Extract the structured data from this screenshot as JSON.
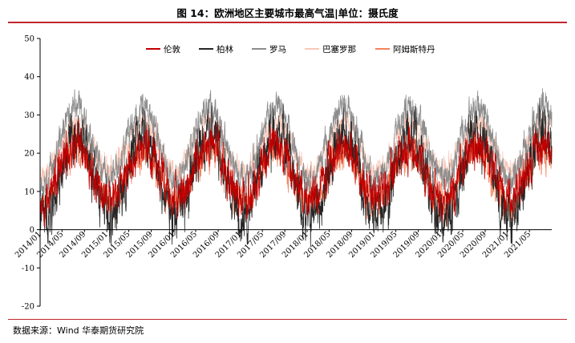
{
  "title": "图 14：欧洲地区主要城市最高气温|单位：摄氏度",
  "source": "数据来源：Wind  华泰期货研究院",
  "chart_data": {
    "type": "line",
    "title": "图 14：欧洲地区主要城市最高气温|单位：摄氏度",
    "xlabel": "",
    "ylabel": "",
    "ylim": [
      -20,
      50
    ],
    "yticks": [
      -20,
      -10,
      0,
      10,
      20,
      30,
      40,
      50
    ],
    "xlim": [
      "2014-01-01",
      "2021-08-31"
    ],
    "x_tick_labels": [
      "2014/01",
      "2014/05",
      "2014/09",
      "2015/01",
      "2015/05",
      "2015/09",
      "2016/01",
      "2016/05",
      "2016/09",
      "2017/01",
      "2017/05",
      "2017/09",
      "2018/01",
      "2018/05",
      "2018/09",
      "2019/01",
      "2019/05",
      "2019/09",
      "2020/01",
      "2020/05",
      "2020/09",
      "2021/01",
      "2021/05"
    ],
    "x_ticks": [
      "2014-01-01",
      "2014-05-01",
      "2014-09-01",
      "2015-01-01",
      "2015-05-01",
      "2015-09-01",
      "2016-01-01",
      "2016-05-01",
      "2016-09-01",
      "2017-01-01",
      "2017-05-01",
      "2017-09-01",
      "2018-01-01",
      "2018-05-01",
      "2018-09-01",
      "2019-01-01",
      "2019-05-01",
      "2019-09-01",
      "2020-01-01",
      "2020-05-01",
      "2020-09-01",
      "2021-01-01",
      "2021-05-01"
    ],
    "grid": false,
    "legend_position": "top-center",
    "frequency": "daily",
    "series": [
      {
        "name": "阿姆斯特丹",
        "color": "#f4845f",
        "baseline": [
          7,
          21
        ],
        "noise": 3.0,
        "seed": 11
      },
      {
        "name": "巴塞罗那",
        "color": "#f8c8b8",
        "baseline": [
          15,
          28
        ],
        "noise": 2.2,
        "seed": 23
      },
      {
        "name": "罗马",
        "color": "#8c8c8c",
        "baseline": [
          13,
          32
        ],
        "noise": 2.6,
        "seed": 37
      },
      {
        "name": "柏林",
        "color": "#262626",
        "baseline": [
          3,
          25
        ],
        "noise": 4.2,
        "seed": 41
      },
      {
        "name": "伦敦",
        "color": "#c00000",
        "baseline": [
          8,
          22
        ],
        "noise": 3.3,
        "seed": 53
      }
    ],
    "legend_order": [
      "伦敦",
      "柏林",
      "罗马",
      "巴塞罗那",
      "阿姆斯特丹"
    ]
  }
}
